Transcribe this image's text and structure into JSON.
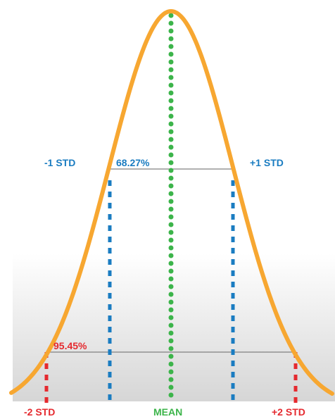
{
  "colors": {
    "curve": "#F7A731",
    "mean_line": "#3CB44A",
    "one_std": "#1A7CC1",
    "two_std": "#E52A2F",
    "bracket": "#808080",
    "shade_top": "#ffffff",
    "shade_bottom": "#d6d6d6",
    "background": "#ffffff"
  },
  "labels": {
    "minus_one_std": "-1 STD",
    "plus_one_std": "+1 STD",
    "minus_two_std": "-2 STD",
    "plus_two_std": "+2 STD",
    "mean": "MEAN",
    "pct_one_std": "68.27%",
    "pct_two_std": "95.45%"
  }
}
